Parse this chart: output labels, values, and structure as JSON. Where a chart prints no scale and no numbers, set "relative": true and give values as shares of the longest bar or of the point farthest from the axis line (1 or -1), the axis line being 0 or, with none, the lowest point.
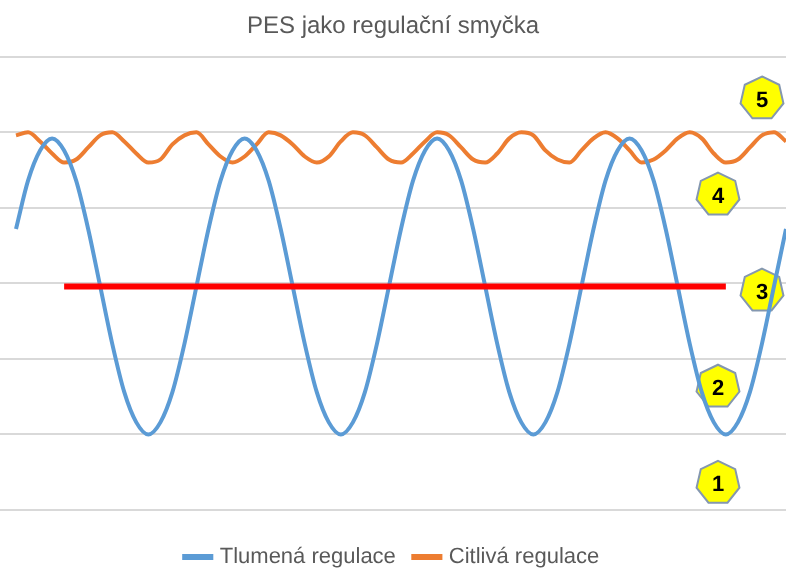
{
  "chart_data": {
    "type": "line",
    "title": "PES jako regulační smyčka",
    "relative": true,
    "grid": "y",
    "legend": "bottom",
    "marker": "none",
    "line_style": "solid",
    "categories": [
      null,
      null,
      null,
      null,
      null,
      null,
      null,
      null,
      null,
      null,
      null,
      null,
      null,
      null,
      null,
      null,
      null,
      null,
      null,
      null,
      null,
      null,
      null,
      null,
      null,
      null,
      null,
      null,
      null,
      null,
      null,
      null,
      null,
      null,
      null,
      null,
      null,
      null,
      null,
      null,
      null,
      null,
      null,
      null,
      null,
      null,
      null,
      null,
      null,
      null,
      null,
      null,
      null,
      null,
      null,
      null,
      null,
      null,
      null,
      null,
      null,
      null,
      null,
      null,
      null
    ],
    "series": [
      {
        "name": "Tlumená regulace",
        "color": "#5b9bd5",
        "values": [
          0.68,
          0.84,
          0.94,
          0.98,
          0.94,
          0.84,
          0.68,
          0.49,
          0.3,
          0.14,
          0.04,
          0,
          0.04,
          0.14,
          0.3,
          0.49,
          0.68,
          0.84,
          0.94,
          0.98,
          0.94,
          0.84,
          0.68,
          0.49,
          0.3,
          0.14,
          0.04,
          0,
          0.04,
          0.14,
          0.3,
          0.49,
          0.68,
          0.84,
          0.94,
          0.98,
          0.94,
          0.84,
          0.68,
          0.49,
          0.3,
          0.14,
          0.04,
          0,
          0.04,
          0.14,
          0.3,
          0.49,
          0.68,
          0.84,
          0.94,
          0.98,
          0.94,
          0.84,
          0.68,
          0.49,
          0.3,
          0.14,
          0.04,
          0,
          0.04,
          0.14,
          0.3,
          0.49,
          0.68
        ]
      },
      {
        "name": "Citlivá regulace",
        "color": "#ed7d31",
        "values": [
          0.99,
          1.0,
          0.97,
          0.93,
          0.9,
          0.91,
          0.95,
          0.99,
          1.0,
          0.97,
          0.93,
          0.9,
          0.91,
          0.96,
          0.99,
          1.0,
          0.96,
          0.92,
          0.9,
          0.92,
          0.96,
          1.0,
          0.99,
          0.96,
          0.92,
          0.9,
          0.92,
          0.97,
          1.0,
          0.99,
          0.95,
          0.91,
          0.9,
          0.93,
          0.97,
          1.0,
          0.99,
          0.95,
          0.91,
          0.9,
          0.93,
          0.98,
          1.0,
          0.99,
          0.94,
          0.91,
          0.9,
          0.94,
          0.98,
          1.0,
          0.98,
          0.94,
          0.9,
          0.91,
          0.94,
          0.98,
          1.0,
          0.98,
          0.93,
          0.9,
          0.91,
          0.95,
          0.99,
          1.0,
          0.97
        ]
      },
      {
        "color": "#ff0000",
        "values": [
          null,
          null,
          null,
          null,
          0.49,
          0.49,
          0.49,
          0.49,
          0.49,
          0.49,
          0.49,
          0.49,
          0.49,
          0.49,
          0.49,
          0.49,
          0.49,
          0.49,
          0.49,
          0.49,
          0.49,
          0.49,
          0.49,
          0.49,
          0.49,
          0.49,
          0.49,
          0.49,
          0.49,
          0.49,
          0.49,
          0.49,
          0.49,
          0.49,
          0.49,
          0.49,
          0.49,
          0.49,
          0.49,
          0.49,
          0.49,
          0.49,
          0.49,
          0.49,
          0.49,
          0.49,
          0.49,
          0.49,
          0.49,
          0.49,
          0.49,
          0.49,
          0.49,
          0.49,
          0.49,
          0.49,
          0.49,
          0.49,
          0.49,
          0.49,
          null,
          null,
          null,
          null,
          null
        ]
      }
    ],
    "annotations": [
      "1",
      "2",
      "3",
      "4",
      "5"
    ]
  }
}
